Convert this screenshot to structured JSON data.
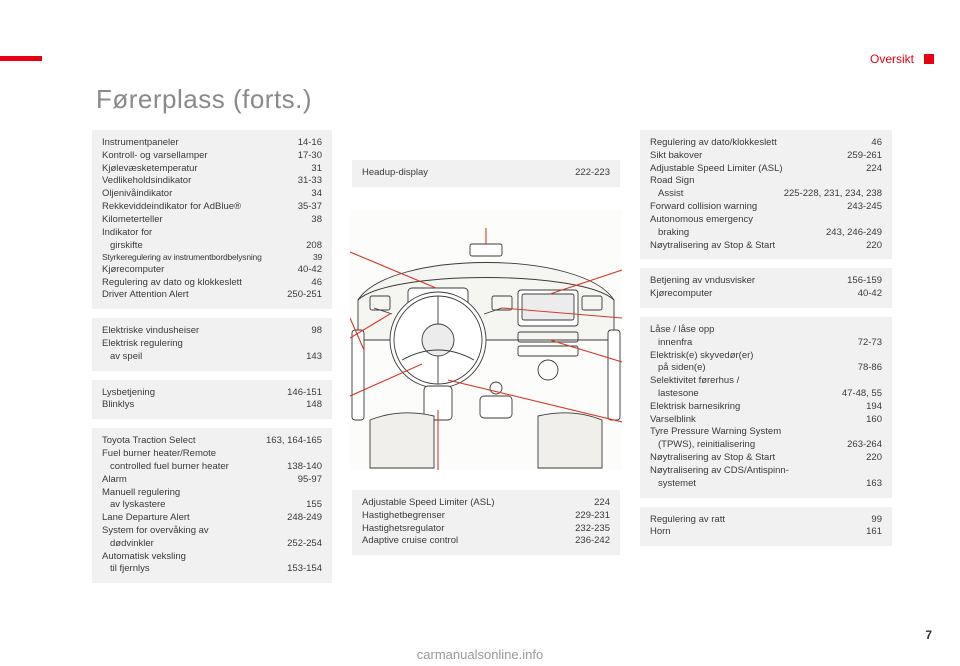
{
  "section": "Oversikt",
  "page_number": "7",
  "footer": "carmanualsonline.info",
  "title": "Førerplass (forts.)",
  "colors": {
    "accent": "#e60012",
    "box_bg": "#f1f1f1",
    "text": "#3a3a3a",
    "title": "#8a8a8a",
    "footer": "#999999",
    "diagram_stroke": "#3a3a3a",
    "diagram_accent": "#d63a2a",
    "diagram_bg": "#fcfcfa"
  },
  "left_boxes": [
    {
      "rows": [
        {
          "label": "Instrumentpaneler",
          "pages": "14-16"
        },
        {
          "label": "Kontroll- og varsellamper",
          "pages": "17-30"
        },
        {
          "label": "Kjølevæsketemperatur",
          "pages": "31"
        },
        {
          "label": "Vedlikeholdsindikator",
          "pages": "31-33"
        },
        {
          "label": "Oljenivåindikator",
          "pages": "34"
        },
        {
          "label": "Rekkeviddeindikator for AdBlue®",
          "pages": "35-37"
        },
        {
          "label": "Kilometerteller",
          "pages": "38"
        },
        {
          "label": "Indikator for",
          "pages": ""
        },
        {
          "label": "girskifte",
          "pages": "208",
          "indent": true
        },
        {
          "label": "Styrkeregulering av instrumentbordbelysning",
          "pages": "39",
          "small": true
        },
        {
          "label": "Kjørecomputer",
          "pages": "40-42"
        },
        {
          "label": "Regulering av dato og klokkeslett",
          "pages": "46"
        },
        {
          "label": "Driver Attention Alert",
          "pages": "250-251"
        }
      ]
    },
    {
      "rows": [
        {
          "label": "Elektriske vindusheiser",
          "pages": "98"
        },
        {
          "label": "Elektrisk regulering",
          "pages": ""
        },
        {
          "label": "av speil",
          "pages": "143",
          "indent": true
        }
      ]
    },
    {
      "rows": [
        {
          "label": "Lysbetjening",
          "pages": "146-151"
        },
        {
          "label": "Blinklys",
          "pages": "148"
        }
      ]
    },
    {
      "rows": [
        {
          "label": "Toyota Traction Select",
          "pages": "163, 164-165"
        },
        {
          "label": "Fuel burner heater/Remote",
          "pages": ""
        },
        {
          "label": "controlled fuel burner heater",
          "pages": "138-140",
          "indent": true
        },
        {
          "label": "Alarm",
          "pages": "95-97"
        },
        {
          "label": "Manuell regulering",
          "pages": ""
        },
        {
          "label": "av lyskastere",
          "pages": "155",
          "indent": true
        },
        {
          "label": "Lane Departure Alert",
          "pages": "248-249"
        },
        {
          "label": "System for overvåking av",
          "pages": ""
        },
        {
          "label": "dødvinkler",
          "pages": "252-254",
          "indent": true
        },
        {
          "label": "Automatisk veksling",
          "pages": ""
        },
        {
          "label": "til fjernlys",
          "pages": "153-154",
          "indent": true
        }
      ]
    }
  ],
  "mid_top": {
    "rows": [
      {
        "label": "Headup-display",
        "pages": "222-223"
      }
    ]
  },
  "mid_bottom": {
    "rows": [
      {
        "label": "Adjustable Speed Limiter (ASL)",
        "pages": "224"
      },
      {
        "label": "Hastighetbegrenser",
        "pages": "229-231"
      },
      {
        "label": "Hastighetsregulator",
        "pages": "232-235"
      },
      {
        "label": "Adaptive cruise control",
        "pages": "236-242"
      }
    ]
  },
  "right_boxes": [
    {
      "rows": [
        {
          "label": "Regulering av dato/klokkeslett",
          "pages": "46"
        },
        {
          "label": "Sikt bakover",
          "pages": "259-261"
        },
        {
          "label": "Adjustable Speed Limiter (ASL)",
          "pages": "224"
        },
        {
          "label": "Road Sign",
          "pages": ""
        },
        {
          "label": "Assist",
          "pages": "225-228, 231, 234, 238",
          "indent": true
        },
        {
          "label": "Forward collision warning",
          "pages": "243-245"
        },
        {
          "label": "Autonomous emergency",
          "pages": ""
        },
        {
          "label": "braking",
          "pages": "243, 246-249",
          "indent": true
        },
        {
          "label": "Nøytralisering av Stop & Start",
          "pages": "220"
        }
      ]
    },
    {
      "rows": [
        {
          "label": "Betjening av vndusvisker",
          "pages": "156-159"
        },
        {
          "label": "Kjørecomputer",
          "pages": "40-42"
        }
      ]
    },
    {
      "rows": [
        {
          "label": "Låse / låse opp",
          "pages": ""
        },
        {
          "label": "innenfra",
          "pages": "72-73",
          "indent": true
        },
        {
          "label": "Elektrisk(e) skyvedør(er)",
          "pages": ""
        },
        {
          "label": "på siden(e)",
          "pages": "78-86",
          "indent": true
        },
        {
          "label": "Selektivitet førerhus /",
          "pages": ""
        },
        {
          "label": "lastesone",
          "pages": "47-48, 55",
          "indent": true
        },
        {
          "label": "Elektrisk barnesikring",
          "pages": "194"
        },
        {
          "label": "Varselblink",
          "pages": "160"
        },
        {
          "label": "Tyre Pressure Warning System",
          "pages": ""
        },
        {
          "label": "(TPWS), reinitialisering",
          "pages": "263-264",
          "indent": true
        },
        {
          "label": "Nøytralisering av Stop & Start",
          "pages": "220"
        },
        {
          "label": "Nøytralisering av CDS/Antispinn-",
          "pages": ""
        },
        {
          "label": "systemet",
          "pages": "163",
          "indent": true
        }
      ]
    },
    {
      "rows": [
        {
          "label": "Regulering av ratt",
          "pages": "99"
        },
        {
          "label": "Horn",
          "pages": "161"
        }
      ]
    }
  ]
}
